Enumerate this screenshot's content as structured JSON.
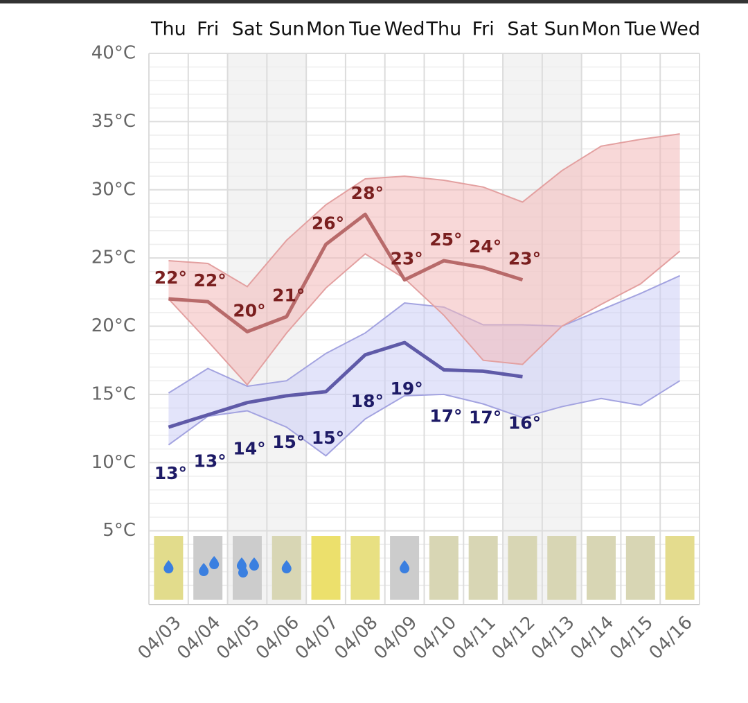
{
  "chart_data": {
    "type": "weather",
    "days": [
      "Thu",
      "Fri",
      "Sat",
      "Sun",
      "Mon",
      "Tue",
      "Wed",
      "Thu",
      "Fri",
      "Sat",
      "Sun",
      "Mon",
      "Tue",
      "Wed"
    ],
    "categories": [
      "04/03",
      "04/04",
      "04/05",
      "04/06",
      "04/07",
      "04/08",
      "04/09",
      "04/10",
      "04/11",
      "04/12",
      "04/13",
      "04/14",
      "04/15",
      "04/16"
    ],
    "weekend": [
      false,
      false,
      true,
      true,
      false,
      false,
      false,
      false,
      false,
      true,
      true,
      false,
      false,
      false
    ],
    "ylim": [
      0,
      40
    ],
    "yticks": [
      {
        "value": 5,
        "label": "5°C"
      },
      {
        "value": 10,
        "label": "10°C"
      },
      {
        "value": 15,
        "label": "15°C"
      },
      {
        "value": 20,
        "label": "20°C"
      },
      {
        "value": 25,
        "label": "25°C"
      },
      {
        "value": 30,
        "label": "30°C"
      },
      {
        "value": 35,
        "label": "35°C"
      },
      {
        "value": 40,
        "label": "40°C"
      }
    ],
    "high": {
      "color": "#b86a6a",
      "label_color": "#7a1f1f",
      "values": [
        22,
        21.8,
        19.6,
        20.7,
        26,
        28.2,
        23.4,
        24.8,
        24.3,
        23.4
      ],
      "value_labels": [
        "22°",
        "22°",
        "20°",
        "21°",
        "26°",
        "28°",
        "23°",
        "25°",
        "24°",
        "23°"
      ]
    },
    "low": {
      "color": "#5f5aa8",
      "label_color": "#1d1a66",
      "values": [
        12.6,
        13.5,
        14.4,
        14.9,
        15.2,
        17.9,
        18.8,
        16.8,
        16.7,
        16.3
      ],
      "value_labels": [
        "13°",
        "13°",
        "14°",
        "15°",
        "15°",
        "18°",
        "19°",
        "17°",
        "17°",
        "16°"
      ]
    },
    "high_range": {
      "color": "#f2b8b8",
      "line": "#e3a0a0",
      "upper": [
        24.8,
        24.6,
        22.9,
        26.3,
        28.9,
        30.8,
        31,
        30.7,
        30.2,
        29.1,
        31.4,
        33.2,
        33.7,
        34.1
      ],
      "lower": [
        22,
        18.9,
        15.7,
        19.5,
        22.8,
        25.3,
        23.5,
        20.8,
        17.5,
        17.2,
        20,
        21.6,
        23.1,
        25.5
      ]
    },
    "low_range": {
      "color": "#cccdf5",
      "line": "#a3a3e0",
      "upper": [
        15.1,
        16.9,
        15.6,
        16,
        18,
        19.5,
        21.7,
        21.4,
        20.1,
        20.1,
        20,
        21.2,
        22.4,
        23.7
      ],
      "lower": [
        11.3,
        13.4,
        13.8,
        12.6,
        10.5,
        13.2,
        14.9,
        15,
        14.3,
        13.3,
        14.1,
        14.7,
        14.2,
        16
      ]
    },
    "tile_colors": [
      "#e2dc8c",
      "#cccccc",
      "#cccccc",
      "#d8d6b4",
      "#ece06c",
      "#e8e082",
      "#cccccc",
      "#d8d6b4",
      "#d8d6b4",
      "#d8d6b4",
      "#d8d6b4",
      "#d8d6b4",
      "#d8d6b4",
      "#e4dc8e"
    ],
    "rain_drops": [
      1,
      2,
      3,
      1,
      0,
      0,
      1,
      0,
      0,
      0,
      0,
      0,
      0,
      0
    ]
  }
}
